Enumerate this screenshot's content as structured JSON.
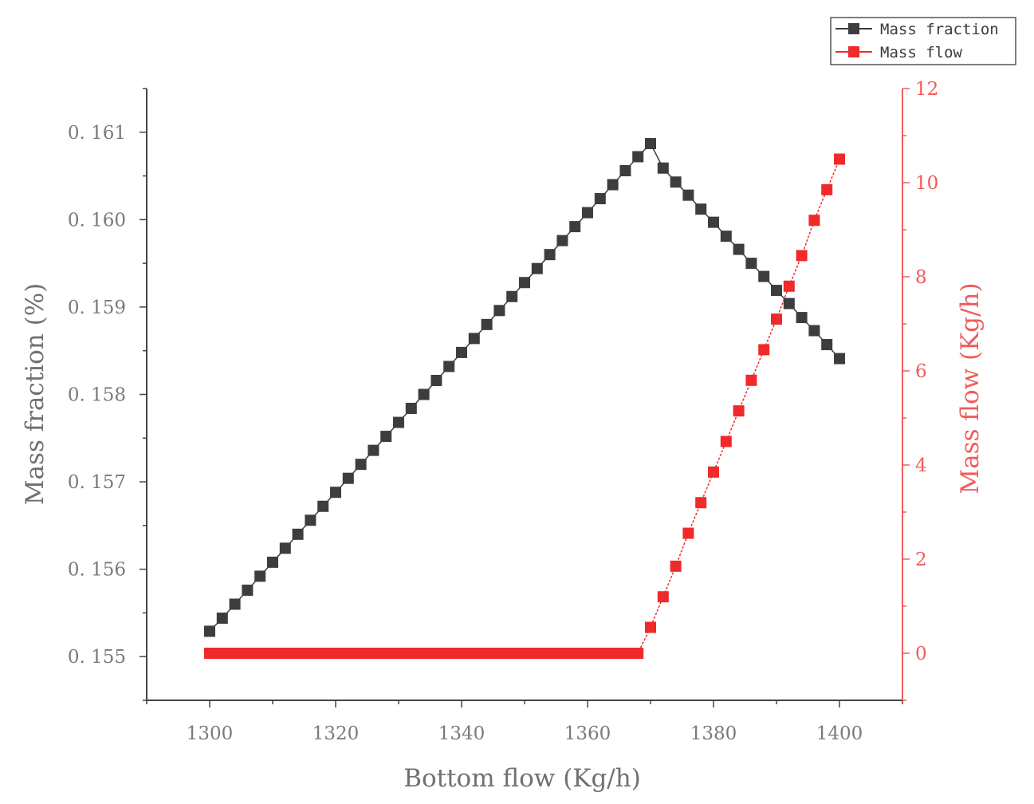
{
  "colors": {
    "left_axis": "#7a7a7a",
    "right_axis": "#f25a5a",
    "series_black": "#3d3d3d",
    "series_red": "#f02a2a",
    "axis_line": "#444444"
  },
  "chart_data": {
    "type": "scatter",
    "xlabel": "Bottom flow (Kg/h)",
    "ylabel": "Mass fraction (%)",
    "y2label": "Mass flow (Kg/h)",
    "xlim": [
      1290,
      1410
    ],
    "ylim": [
      0.1545,
      0.1615
    ],
    "y2lim": [
      -1,
      12
    ],
    "xticks": [
      "1300",
      "1320",
      "1340",
      "1360",
      "1380",
      "1400"
    ],
    "yticks": [
      "0.155",
      "0.156",
      "0.157",
      "0.158",
      "0.159",
      "0.160",
      "0.161"
    ],
    "y2ticks": [
      "0",
      "2",
      "4",
      "6",
      "8",
      "10",
      "12"
    ],
    "legend_position": "top-right",
    "series": [
      {
        "name": "Mass fraction",
        "axis": "left",
        "color": "#3d3d3d",
        "x": [
          1300,
          1302,
          1304,
          1306,
          1308,
          1310,
          1312,
          1314,
          1316,
          1318,
          1320,
          1322,
          1324,
          1326,
          1328,
          1330,
          1332,
          1334,
          1336,
          1338,
          1340,
          1342,
          1344,
          1346,
          1348,
          1350,
          1352,
          1354,
          1356,
          1358,
          1360,
          1362,
          1364,
          1366,
          1368,
          1370,
          1372,
          1374,
          1376,
          1378,
          1380,
          1382,
          1384,
          1386,
          1388,
          1390,
          1392,
          1394,
          1396,
          1398,
          1400
        ],
        "y": [
          0.15529,
          0.15544,
          0.1556,
          0.15576,
          0.15592,
          0.15608,
          0.15624,
          0.1564,
          0.15656,
          0.15672,
          0.15688,
          0.15704,
          0.1572,
          0.15736,
          0.15752,
          0.15768,
          0.15784,
          0.158,
          0.15816,
          0.15832,
          0.15848,
          0.15864,
          0.1588,
          0.15896,
          0.15912,
          0.15928,
          0.15944,
          0.1596,
          0.15976,
          0.15992,
          0.16008,
          0.16024,
          0.1604,
          0.16056,
          0.16072,
          0.16087,
          0.16059,
          0.16043,
          0.16028,
          0.16012,
          0.15997,
          0.15981,
          0.15966,
          0.1595,
          0.15935,
          0.15919,
          0.15904,
          0.15888,
          0.15873,
          0.15857,
          0.15841
        ]
      },
      {
        "name": "Mass flow",
        "axis": "right",
        "color": "#f02a2a",
        "x": [
          1300,
          1301,
          1302,
          1303,
          1304,
          1305,
          1306,
          1307,
          1308,
          1309,
          1310,
          1311,
          1312,
          1313,
          1314,
          1315,
          1316,
          1317,
          1318,
          1319,
          1320,
          1321,
          1322,
          1323,
          1324,
          1325,
          1326,
          1327,
          1328,
          1329,
          1330,
          1331,
          1332,
          1333,
          1334,
          1335,
          1336,
          1337,
          1338,
          1339,
          1340,
          1341,
          1342,
          1343,
          1344,
          1345,
          1346,
          1347,
          1348,
          1349,
          1350,
          1351,
          1352,
          1353,
          1354,
          1355,
          1356,
          1357,
          1358,
          1359,
          1360,
          1361,
          1362,
          1363,
          1364,
          1365,
          1366,
          1367,
          1368,
          1370,
          1372,
          1374,
          1376,
          1378,
          1380,
          1382,
          1384,
          1386,
          1388,
          1390,
          1392,
          1394,
          1396,
          1398,
          1400
        ],
        "y": [
          0,
          0,
          0,
          0,
          0,
          0,
          0,
          0,
          0,
          0,
          0,
          0,
          0,
          0,
          0,
          0,
          0,
          0,
          0,
          0,
          0,
          0,
          0,
          0,
          0,
          0,
          0,
          0,
          0,
          0,
          0,
          0,
          0,
          0,
          0,
          0,
          0,
          0,
          0,
          0,
          0,
          0,
          0,
          0,
          0,
          0,
          0,
          0,
          0,
          0,
          0,
          0,
          0,
          0,
          0,
          0,
          0,
          0,
          0,
          0,
          0,
          0,
          0,
          0,
          0,
          0,
          0,
          0,
          0,
          0.55,
          1.2,
          1.85,
          2.55,
          3.2,
          3.85,
          4.5,
          5.15,
          5.8,
          6.45,
          7.1,
          7.8,
          8.45,
          9.2,
          9.85,
          10.5
        ]
      }
    ]
  }
}
